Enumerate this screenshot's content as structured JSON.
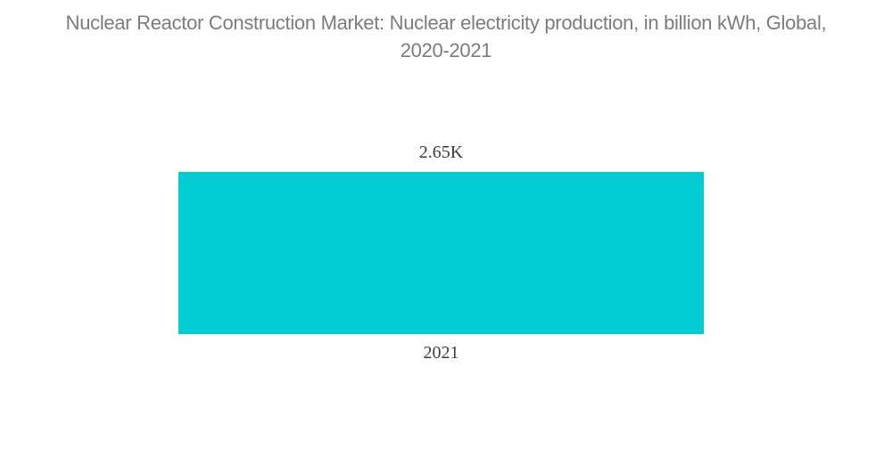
{
  "page": {
    "background": "#ffffff"
  },
  "header": {
    "title_full": "Nuclear Reactor Construction Market: Nuclear electricity production, in billion kWh, Global, 2020-2021",
    "title_line1": "Nuclear Reactor Construction Market: Nuclear electricity production, in billion kWh, Global,",
    "title_line2": "2020-2021",
    "color": "#7a7d80"
  },
  "chart_data": {
    "type": "bar",
    "title": "Nuclear Reactor Construction Market: Nuclear electricity production, in billion kWh, Global, 2020-2021",
    "categories": [
      "2021"
    ],
    "values": [
      2650
    ],
    "data_labels": [
      "2.65K"
    ],
    "unit": "billion kWh",
    "xlabel": "",
    "ylabel": "",
    "grid": false,
    "legend": "none",
    "orientation": "vertical",
    "bar_color": "#00ccd2",
    "label_color": "#3b3e40",
    "background": "#ffffff"
  }
}
